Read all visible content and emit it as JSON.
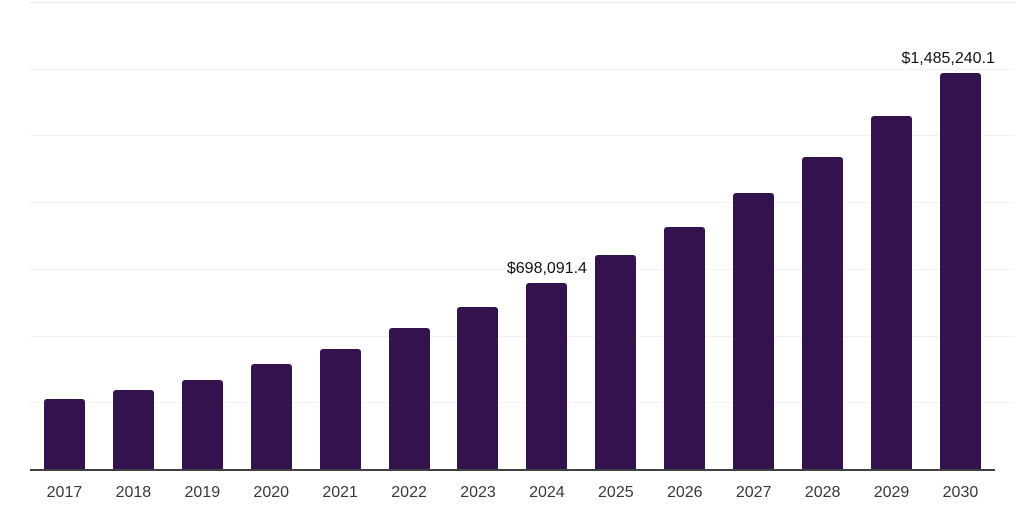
{
  "chart_data": {
    "type": "bar",
    "title": "",
    "xlabel": "",
    "ylabel": "",
    "categories": [
      "2017",
      "2018",
      "2019",
      "2020",
      "2021",
      "2022",
      "2023",
      "2024",
      "2025",
      "2026",
      "2027",
      "2028",
      "2029",
      "2030"
    ],
    "values": [
      261000,
      295000,
      335000,
      394000,
      450000,
      527000,
      608000,
      698091.4,
      802000,
      908000,
      1033000,
      1171000,
      1321000,
      1485240.1
    ],
    "point_labels": [
      "",
      "",
      "",
      "",
      "",
      "",
      "",
      "$698,091.4",
      "",
      "",
      "",
      "",
      "",
      "$1,485,240.1"
    ],
    "ylim": [
      0,
      1750000
    ],
    "gridline_step": 250000,
    "gridline_count": 8,
    "grid": "horizontal",
    "legend": false,
    "y_axis_labels_visible": false
  },
  "colors": {
    "background": "#ffffff",
    "bar": "#33124e",
    "axis_line": "#404040",
    "gridline": "#f2f2f2",
    "top_gridline": "#e7e7e7",
    "tick_label": "#383838",
    "data_label": "#121212"
  }
}
